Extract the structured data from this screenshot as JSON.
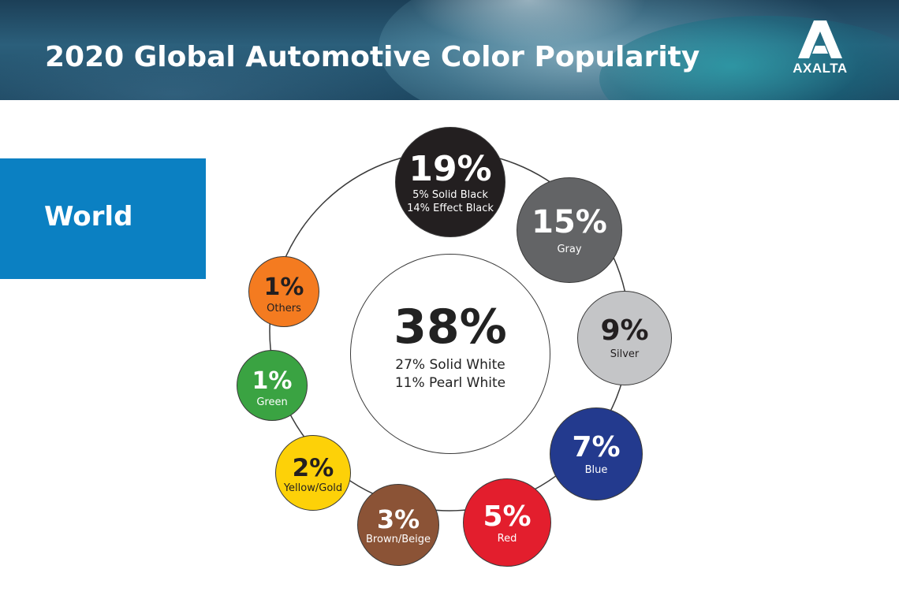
{
  "header": {
    "title": "2020 Global Automotive Color Popularity",
    "logo_text": "AXALTA"
  },
  "region": {
    "label": "World"
  },
  "chart_data": {
    "type": "pie",
    "title": "2020 Global Automotive Color Popularity",
    "region": "World",
    "center": {
      "category": "White",
      "value": 38,
      "label": "38%",
      "breakdown": [
        "27% Solid White",
        "11% Pearl White"
      ],
      "color": "#ffffff"
    },
    "slices": [
      {
        "category": "Black",
        "value": 19,
        "label": "19%",
        "details": [
          "5% Solid Black",
          "14% Effect Black"
        ],
        "color": "#231f20",
        "text_color": "#ffffff"
      },
      {
        "category": "Gray",
        "value": 15,
        "label": "15%",
        "details": [
          "Gray"
        ],
        "color": "#636466",
        "text_color": "#ffffff"
      },
      {
        "category": "Silver",
        "value": 9,
        "label": "9%",
        "details": [
          "Silver"
        ],
        "color": "#c4c5c7",
        "text_color": "#231f20"
      },
      {
        "category": "Blue",
        "value": 7,
        "label": "7%",
        "details": [
          "Blue"
        ],
        "color": "#233a8e",
        "text_color": "#ffffff"
      },
      {
        "category": "Red",
        "value": 5,
        "label": "5%",
        "details": [
          "Red"
        ],
        "color": "#e31e2d",
        "text_color": "#ffffff"
      },
      {
        "category": "Brown/Beige",
        "value": 3,
        "label": "3%",
        "details": [
          "Brown/Beige"
        ],
        "color": "#8b5336",
        "text_color": "#ffffff"
      },
      {
        "category": "Yellow/Gold",
        "value": 2,
        "label": "2%",
        "details": [
          "Yellow/Gold"
        ],
        "color": "#fdd108",
        "text_color": "#231f20"
      },
      {
        "category": "Green",
        "value": 1,
        "label": "1%",
        "details": [
          "Green"
        ],
        "color": "#3aa342",
        "text_color": "#ffffff"
      },
      {
        "category": "Others",
        "value": 1,
        "label": "1%",
        "details": [
          "Others"
        ],
        "color": "#f47b20",
        "text_color": "#231f20"
      }
    ]
  },
  "colors": {
    "region_box": "#0b80c2",
    "ring_line": "#3a3a3a"
  }
}
